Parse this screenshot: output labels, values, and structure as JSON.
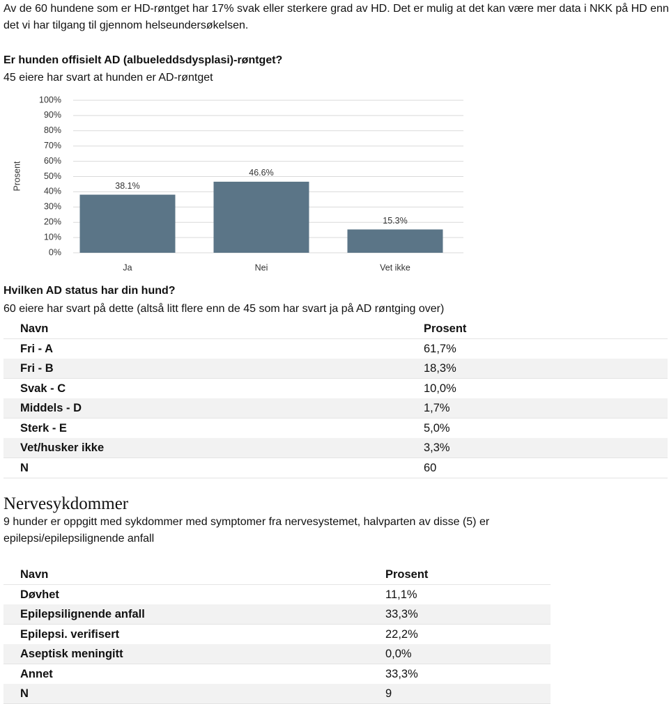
{
  "intro": "Av de 60 hundene som er HD-røntget har 17% svak eller sterkere grad av HD. Det er mulig at det kan være mer data i NKK på HD enn det vi har tilgang til gjennom helseundersøkelsen.",
  "ad_heading": "Er hunden offisielt AD (albueleddsdysplasi)-røntget?",
  "ad_note": "45 eiere har svart at hunden er AD-røntget",
  "chart_data": {
    "type": "bar",
    "y_label": "Prosent",
    "categories": [
      "Ja",
      "Nei",
      "Vet ikke"
    ],
    "values": [
      38.1,
      46.6,
      15.3
    ],
    "value_labels": [
      "38.1%",
      "46.6%",
      "15.3%"
    ],
    "color": "#5b7587",
    "ylim": [
      0,
      100
    ],
    "yticks": [
      {
        "value": 0,
        "label": "0%"
      },
      {
        "value": 10,
        "label": "10%"
      },
      {
        "value": 20,
        "label": "20%"
      },
      {
        "value": 30,
        "label": "30%"
      },
      {
        "value": 40,
        "label": "40%"
      },
      {
        "value": 50,
        "label": "50%"
      },
      {
        "value": 60,
        "label": "60%"
      },
      {
        "value": 70,
        "label": "70%"
      },
      {
        "value": 80,
        "label": "80%"
      },
      {
        "value": 90,
        "label": "90%"
      },
      {
        "value": 100,
        "label": "100%"
      }
    ],
    "grid": true
  },
  "status_heading": "Hvilken AD status har din hund?",
  "status_note": "60 eiere har svart på dette (altså litt flere enn de 45 som har svart ja på AD røntging over)",
  "status_table": {
    "header": [
      "Navn",
      "Prosent"
    ],
    "rows": [
      [
        "Fri - A",
        "61,7%"
      ],
      [
        "Fri - B",
        "18,3%"
      ],
      [
        "Svak - C",
        "10,0%"
      ],
      [
        "Middels - D",
        "1,7%"
      ],
      [
        "Sterk - E",
        "5,0%"
      ],
      [
        "Vet/husker ikke",
        "3,3%"
      ],
      [
        "N",
        "60"
      ]
    ]
  },
  "nerve_heading": "Nervesykdommer",
  "nerve_note": "9 hunder er oppgitt med sykdommer med symptomer fra nervesystemet, halvparten av disse (5) er epilepsi/epilepsilignende anfall",
  "nerve_table": {
    "header": [
      "Navn",
      "Prosent"
    ],
    "rows": [
      [
        "Døvhet",
        "11,1%"
      ],
      [
        "Epilepsilignende anfall",
        "33,3%"
      ],
      [
        "Epilepsi. verifisert",
        "22,2%"
      ],
      [
        "Aseptisk meningitt",
        "0,0%"
      ],
      [
        "Annet",
        "33,3%"
      ],
      [
        "N",
        "9"
      ]
    ]
  }
}
